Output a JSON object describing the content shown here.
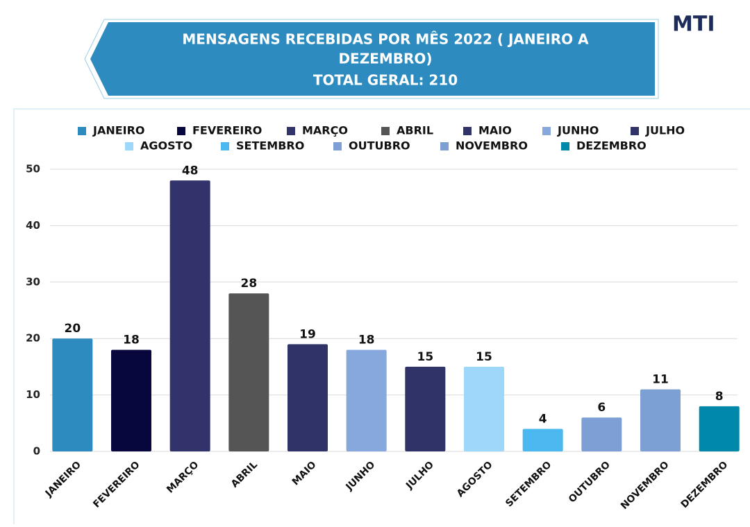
{
  "logo": "MTI",
  "chart_data": {
    "type": "bar",
    "title": [
      "MENSAGENS RECEBIDAS POR MÊS 2022 ( JANEIRO A",
      "DEZEMBRO)",
      "TOTAL GERAL: 210"
    ],
    "categories": [
      "JANEIRO",
      "FEVEREIRO",
      "MARÇO",
      "ABRIL",
      "MAIO",
      "JUNHO",
      "JULHO",
      "AGOSTO",
      "SETEMBRO",
      "OUTUBRO",
      "NOVEMBRO",
      "DEZEMBRO"
    ],
    "values": [
      20,
      18,
      48,
      28,
      19,
      18,
      15,
      15,
      4,
      6,
      11,
      8
    ],
    "colors": [
      "#2e8bc0",
      "#07073d",
      "#31336a",
      "#555555",
      "#2f3368",
      "#87a8dc",
      "#2f3368",
      "#9dd8fb",
      "#4bb8f0",
      "#7e9fd6",
      "#7c9fd4",
      "#0088aa"
    ],
    "ylim": [
      0,
      50
    ],
    "yticks": [
      0,
      10,
      20,
      30,
      40,
      50
    ],
    "grid": true,
    "legend": "top"
  }
}
